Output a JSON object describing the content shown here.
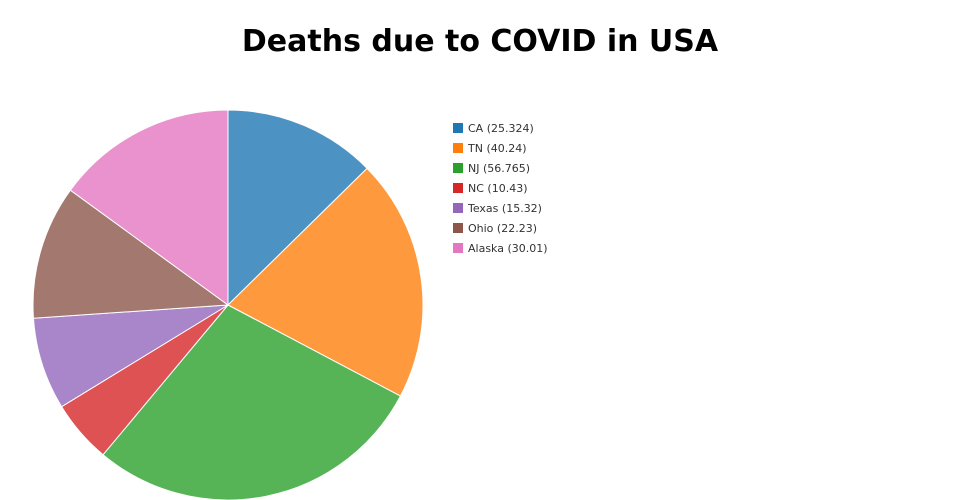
{
  "chart_data": {
    "type": "pie",
    "title": "Deaths due to COVID in USA",
    "direction": "clockwise",
    "start": "top",
    "legend_position": "right",
    "slices": [
      {
        "label": "CA (25.324)",
        "value": 25.324,
        "color": "#1f77b4"
      },
      {
        "label": "TN (40.24)",
        "value": 40.24,
        "color": "#ff7f0e"
      },
      {
        "label": "NJ (56.765)",
        "value": 56.765,
        "color": "#2ca02c"
      },
      {
        "label": "NC (10.43)",
        "value": 10.43,
        "color": "#d62728"
      },
      {
        "label": "Texas (15.32)",
        "value": 15.32,
        "color": "#9467bd"
      },
      {
        "label": "Ohio (22.23)",
        "value": 22.23,
        "color": "#8c564b"
      },
      {
        "label": "Alaska (30.01)",
        "value": 30.01,
        "color": "#e377c2"
      }
    ]
  }
}
